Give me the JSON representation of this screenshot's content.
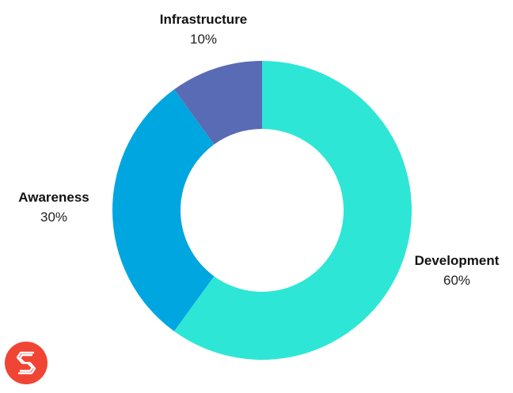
{
  "chart_data": {
    "type": "pie",
    "donut": true,
    "start_angle_deg": 0,
    "direction": "clockwise",
    "slices": [
      {
        "label": "Development",
        "value": 60,
        "display": "60%",
        "color": "#2ee6d6"
      },
      {
        "label": "Awareness",
        "value": 30,
        "display": "30%",
        "color": "#00a6e0"
      },
      {
        "label": "Infrastructure",
        "value": 10,
        "display": "10%",
        "color": "#5a6bb5"
      }
    ],
    "title": "",
    "legend": "none"
  },
  "brand": {
    "logo_icon": "brand-s-logo-icon",
    "logo_color": "#f04535"
  }
}
